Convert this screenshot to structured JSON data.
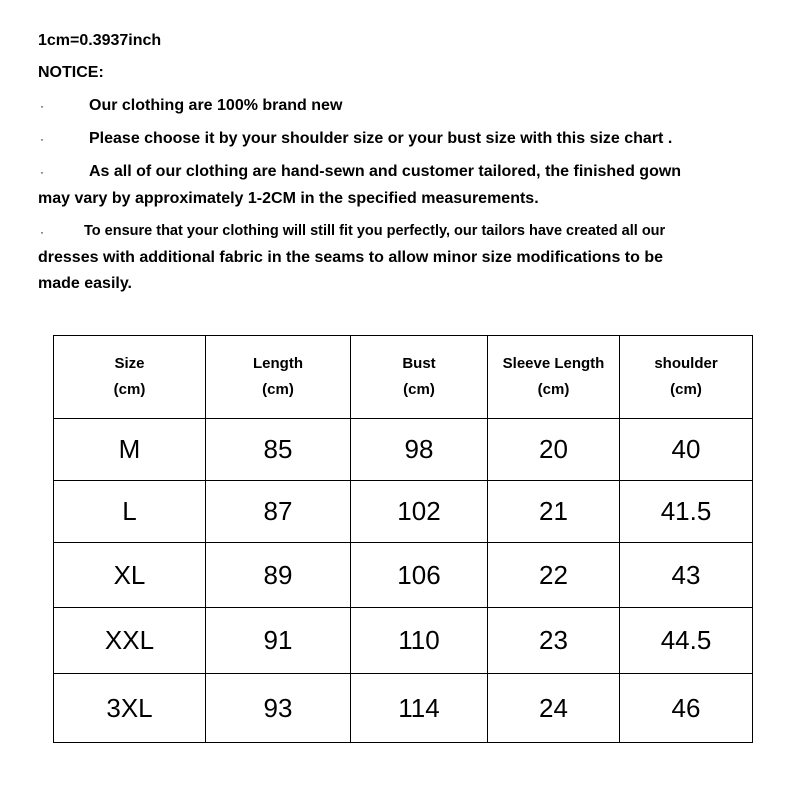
{
  "conversion": "1cm=0.3937inch",
  "notice_title": "NOTICE:",
  "bullet": "·",
  "notes": [
    "Our clothing are 100% brand new",
    "Please choose it by your shoulder size or your bust size with this size chart .",
    "As all of our clothing are hand-sewn and customer tailored, the finished gown",
    "may vary by approximately 1-2CM in the specified measurements.",
    "To ensure that your clothing will still fit you perfectly, our tailors have created all our",
    "dresses with additional fabric in the seams to allow minor size modifications to be",
    "made easily."
  ],
  "table": {
    "headers": [
      {
        "name": "Size",
        "unit": "(cm)"
      },
      {
        "name": "Length",
        "unit": "(cm)"
      },
      {
        "name": "Bust",
        "unit": "(cm)"
      },
      {
        "name": "Sleeve Length",
        "unit": "(cm)"
      },
      {
        "name": "shoulder",
        "unit": "(cm)"
      }
    ],
    "rows": [
      [
        "M",
        "85",
        "98",
        "20",
        "40"
      ],
      [
        "L",
        "87",
        "102",
        "21",
        "41.5"
      ],
      [
        "XL",
        "89",
        "106",
        "22",
        "43"
      ],
      [
        "XXL",
        "91",
        "110",
        "23",
        "44.5"
      ],
      [
        "3XL",
        "93",
        "114",
        "24",
        "46"
      ]
    ]
  }
}
